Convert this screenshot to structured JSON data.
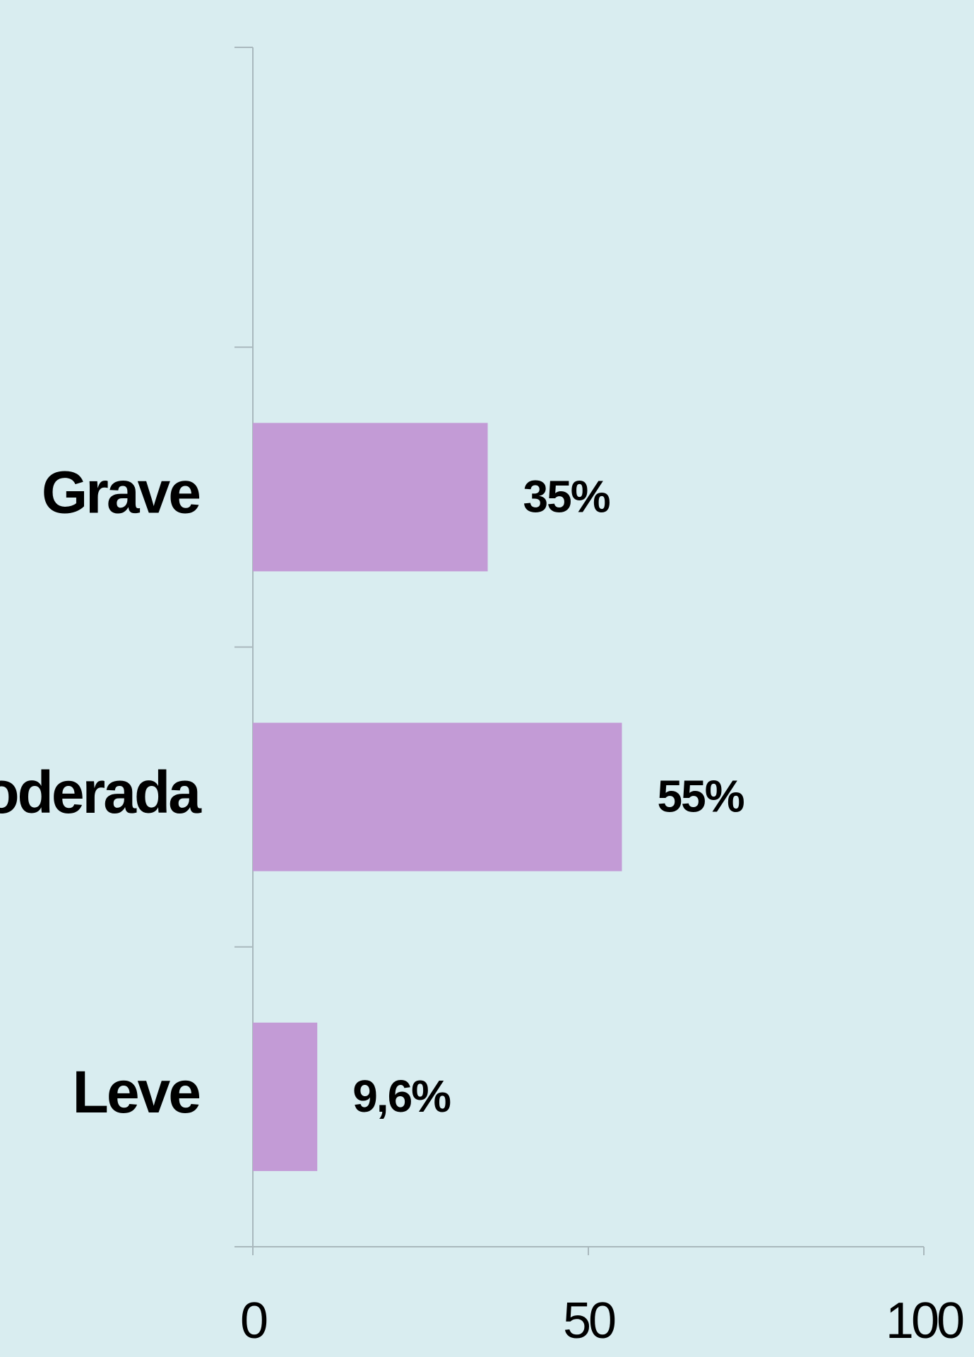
{
  "chart_data": {
    "type": "barh",
    "categories": [
      null,
      "Grave",
      "Moderada",
      "Leve"
    ],
    "values": [
      null,
      35,
      55,
      9.6
    ],
    "value_labels": [
      null,
      "35%",
      "55%",
      "9,6%"
    ],
    "color": "#c39bd6",
    "xlim": [
      0,
      100
    ],
    "xticks": [
      0,
      50,
      100
    ],
    "grid": false
  }
}
